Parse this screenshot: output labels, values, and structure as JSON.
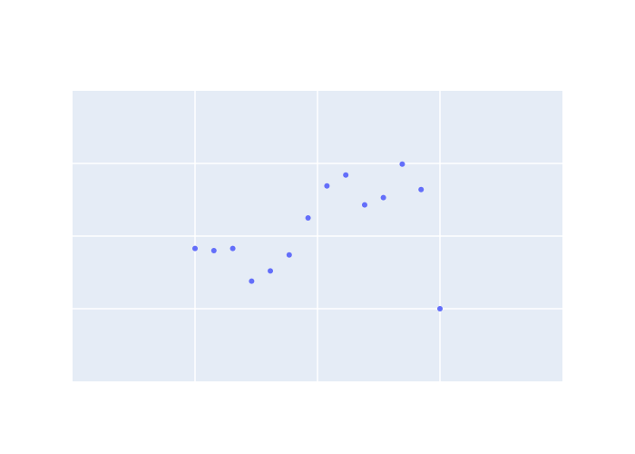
{
  "colors": {
    "page_background": "#ffffff",
    "plot_background": "#e5ecf6",
    "grid": "#ffffff",
    "marker": "#636efa"
  },
  "chart_data": {
    "type": "scatter",
    "title": "",
    "xlabel": "",
    "ylabel": "",
    "grid": true,
    "xlim": [
      0,
      4
    ],
    "ylim": [
      0,
      4
    ],
    "x_gridlines": [
      1,
      2,
      3
    ],
    "y_gridlines": [
      1,
      2,
      3
    ],
    "series": [
      {
        "x": [
          1.0,
          1.154,
          1.308,
          1.462,
          1.615,
          1.769,
          1.923,
          2.077,
          2.231,
          2.385,
          2.538,
          2.692,
          2.846,
          3.0
        ],
        "y": [
          1.83,
          1.8,
          1.83,
          1.38,
          1.52,
          1.74,
          2.25,
          2.69,
          2.84,
          2.43,
          2.53,
          2.99,
          2.64,
          1.0
        ]
      }
    ]
  }
}
